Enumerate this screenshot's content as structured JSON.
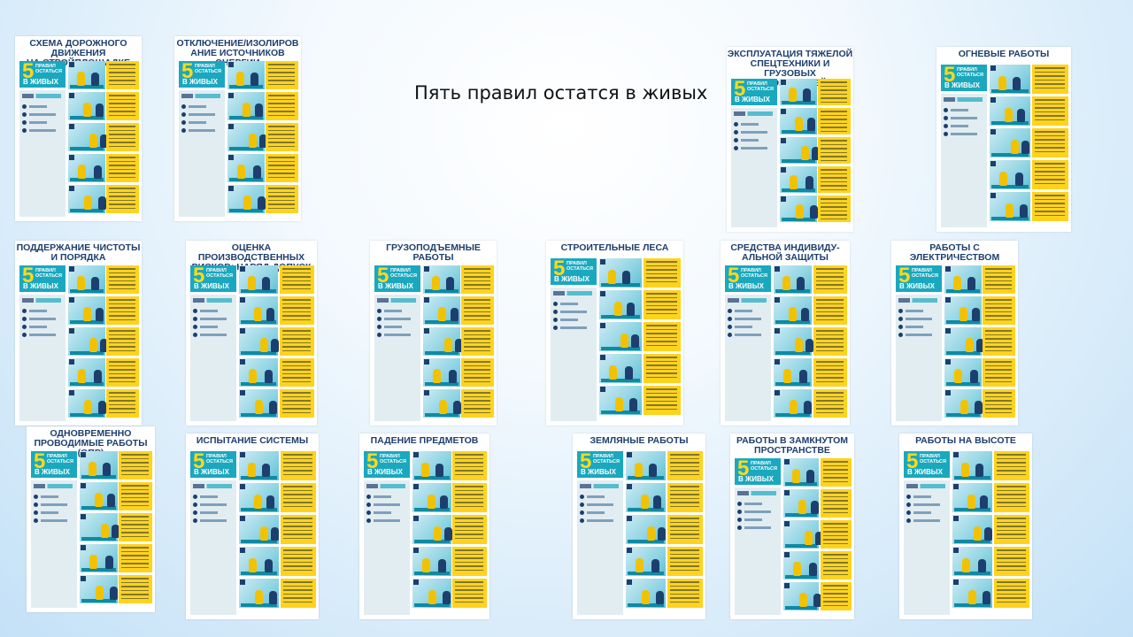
{
  "slide": {
    "title": "Пять правил остатся в живых"
  },
  "badge": {
    "number": "5",
    "line": "ПРАВИЛ\nОСТАТЬСЯ",
    "big": "В ЖИВЫХ"
  },
  "posters": [
    {
      "title": "СХЕМА ДОРОЖНОГО ДВИЖЕНИЯ\nНА СТРОЙПЛОЩАДКЕ"
    },
    {
      "title": "ОТКЛЮЧЕНИЕ/ИЗОЛИРОВ\nАНИЕ ИСТОЧНИКОВ ЭНЕРГИИ"
    },
    {
      "title": "ЭКСПЛУАТАЦИЯ ТЯЖЕЛОЙ\nСПЕЦТЕХНИКИ И ГРУЗОВЫХ\nАВТОМОБИЛЕЙ"
    },
    {
      "title": "ОГНЕВЫЕ РАБОТЫ"
    },
    {
      "title": "ПОДДЕРЖАНИЕ ЧИСТОТЫ\nИ ПОРЯДКА"
    },
    {
      "title": "ОЦЕНКА ПРОИЗВОДСТВЕННЫХ\nРИСКОВ: НАРЯД-ДОПУСК"
    },
    {
      "title": "ГРУЗОПОДЪЕМНЫЕ\nРАБОТЫ"
    },
    {
      "title": "СТРОИТЕЛЬНЫЕ ЛЕСА"
    },
    {
      "title": "СРЕДСТВА ИНДИВИДУ-\nАЛЬНОЙ ЗАЩИТЫ"
    },
    {
      "title": "РАБОТЫ С\nЭЛЕКТРИЧЕСТВОМ"
    },
    {
      "title": "ОДНОВРЕМЕННО\nПРОВОДИМЫЕ РАБОТЫ (ОПР)"
    },
    {
      "title": "ИСПЫТАНИЕ СИСТЕМЫ"
    },
    {
      "title": "ПАДЕНИЕ ПРЕДМЕТОВ"
    },
    {
      "title": "ЗЕМЛЯНЫЕ РАБОТЫ"
    },
    {
      "title": "РАБОТЫ В ЗАМКНУТОМ\nПРОСТРАНСТВЕ"
    },
    {
      "title": "РАБОТЫ НА ВЫСОТЕ"
    }
  ]
}
